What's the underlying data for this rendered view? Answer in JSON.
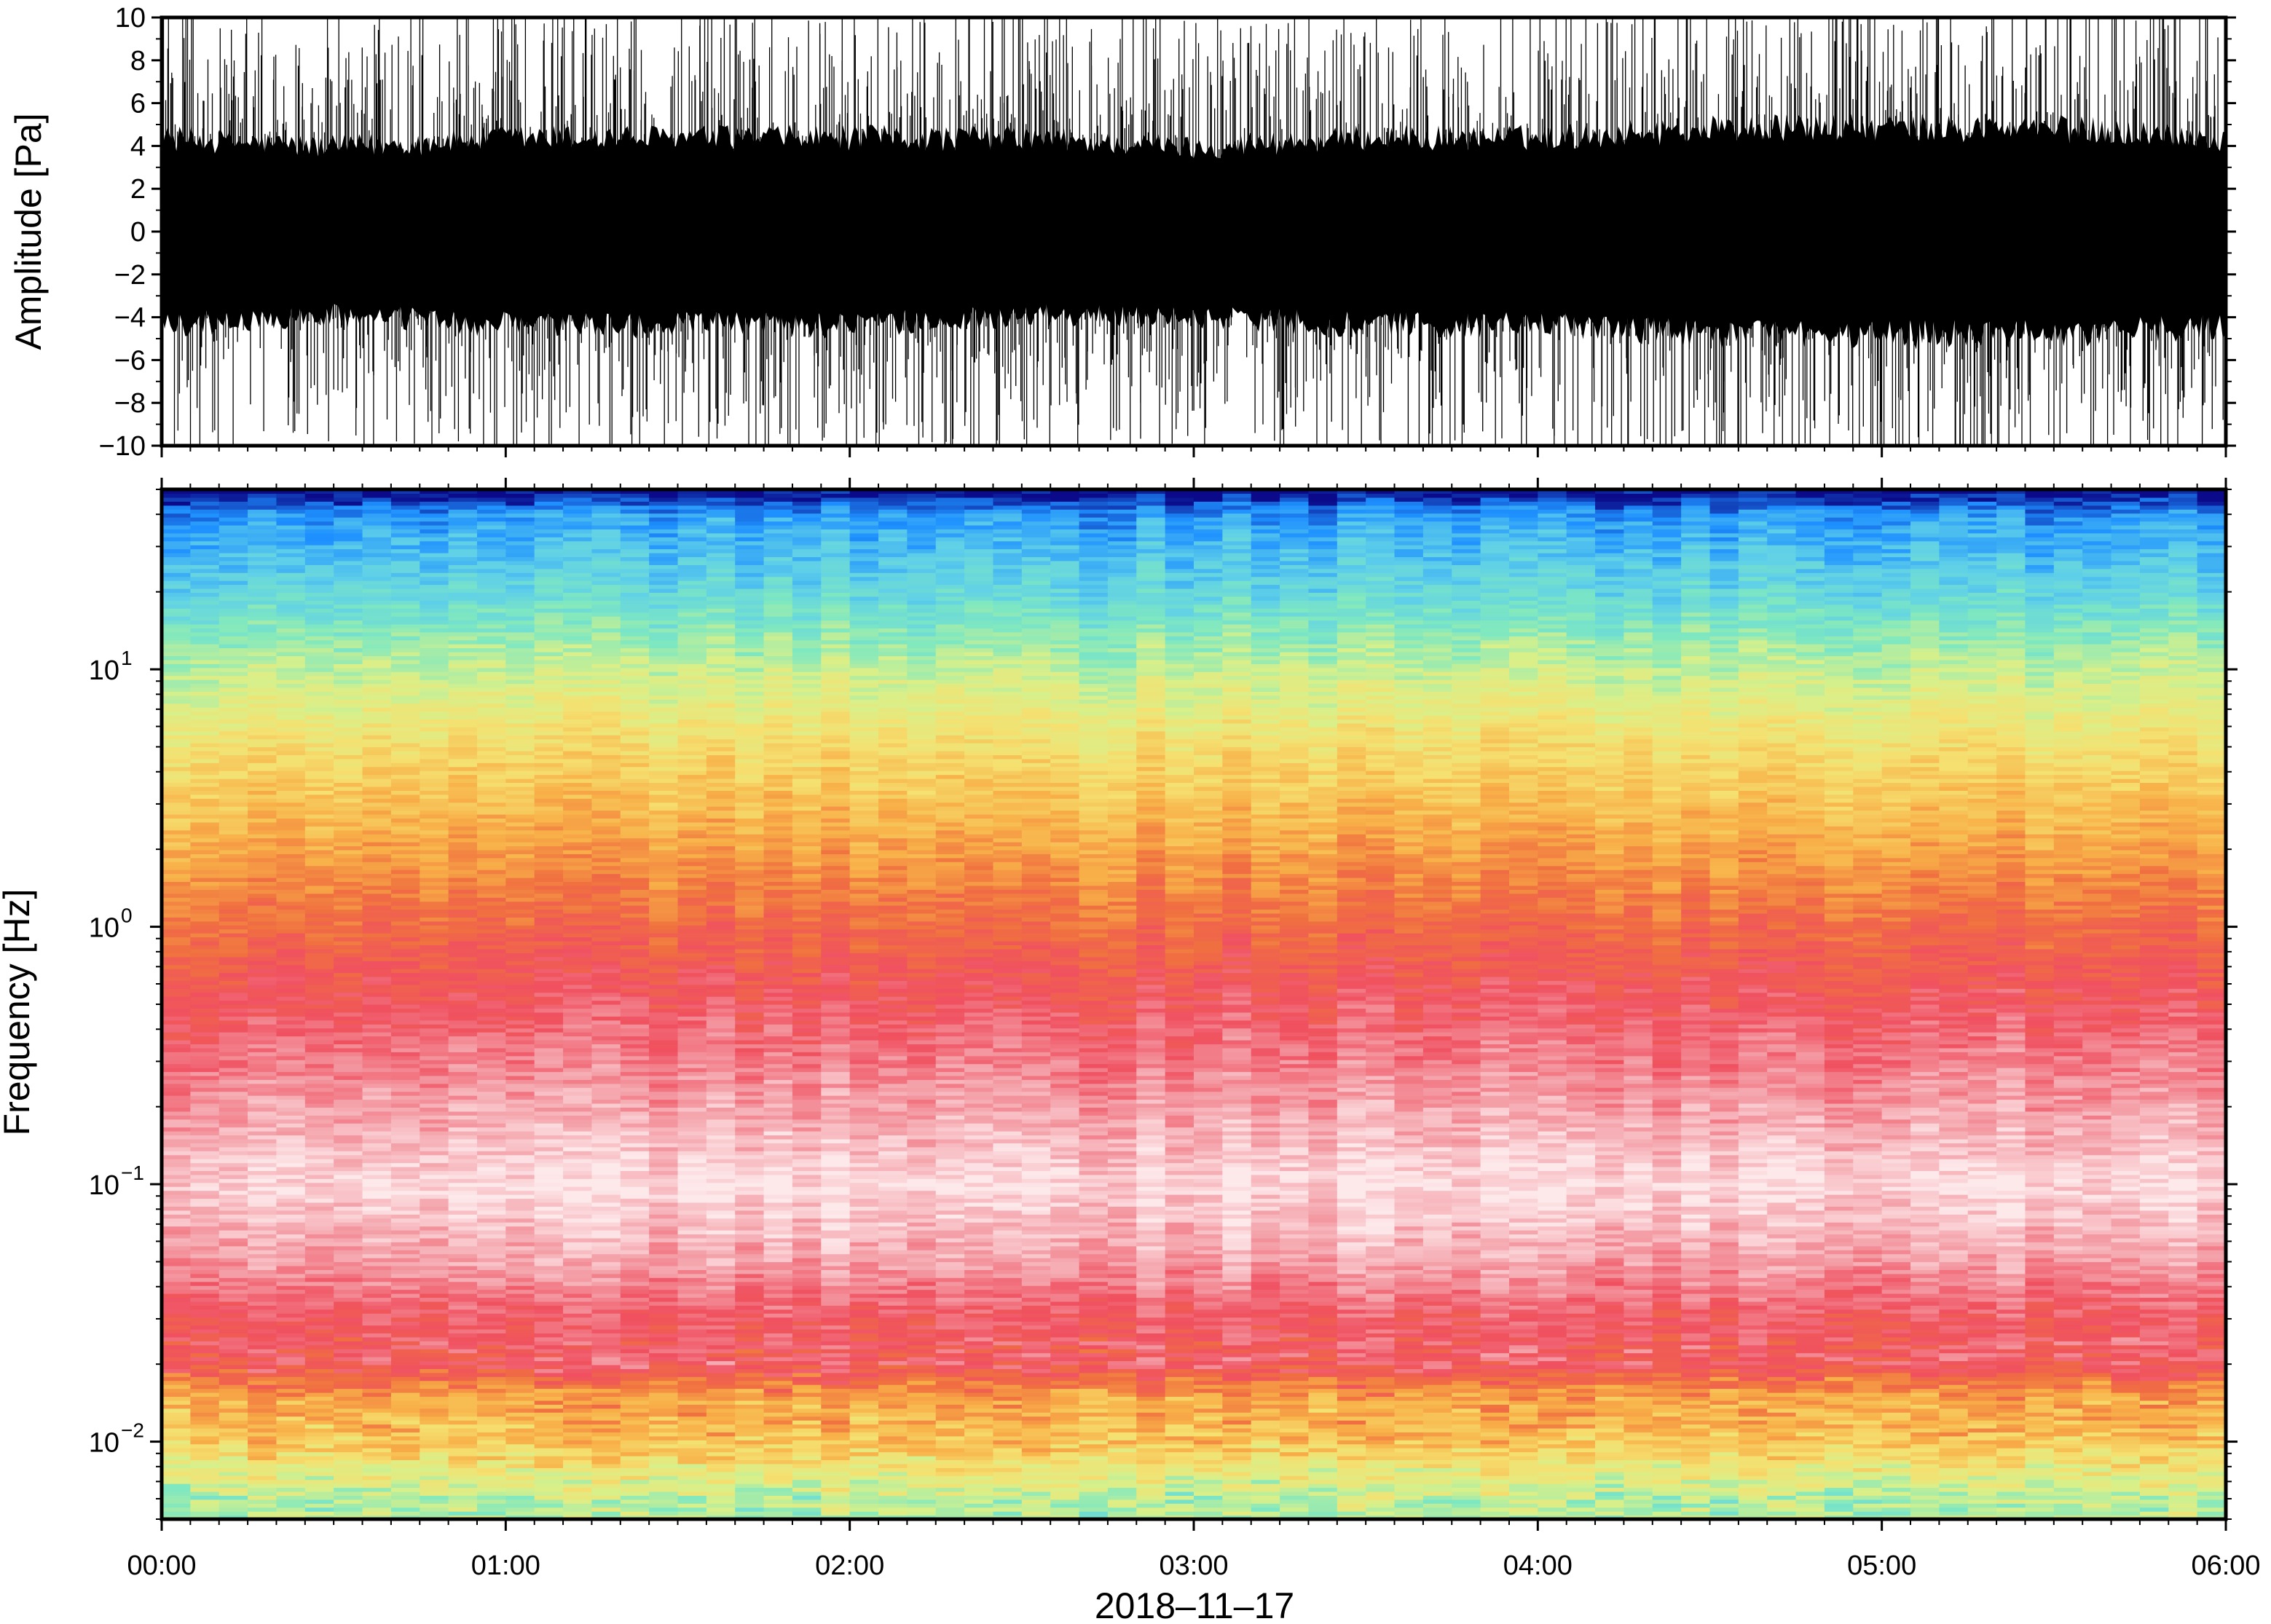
{
  "chart_data": [
    {
      "type": "line",
      "title": "",
      "xlabel": "",
      "ylabel": "Amplitude [Pa]",
      "ylim": [
        -10,
        10
      ],
      "yticks": [
        -10,
        -8,
        -6,
        -4,
        -2,
        0,
        2,
        4,
        6,
        8,
        10
      ],
      "ytick_labels": [
        "−10",
        "−8",
        "−6",
        "−4",
        "−2",
        "0",
        "2",
        "4",
        "6",
        "8",
        "10"
      ],
      "x_range": [
        "00:00",
        "06:00"
      ],
      "series": [
        {
          "values_description_none": null,
          "envelope_points": {
            "x": [
              "00:00",
              "00:30",
              "01:00",
              "01:30",
              "02:00",
              "02:30",
              "03:00",
              "03:30",
              "04:00",
              "04:30",
              "05:00",
              "05:30",
              "06:00"
            ],
            "typical_max": [
              5,
              4.5,
              5,
              5,
              5,
              5,
              4.5,
              5,
              5,
              5.5,
              5.5,
              5.5,
              5
            ],
            "typical_min": [
              -5,
              -4.5,
              -5,
              -5,
              -5,
              -4.5,
              -4.5,
              -5,
              -5,
              -5.5,
              -5.5,
              -5.5,
              -5
            ],
            "peak_max": [
              10,
              10,
              10,
              10,
              10,
              10,
              10,
              10,
              10,
              10,
              10,
              10,
              10
            ],
            "peak_min": [
              -10,
              -10,
              -10,
              -10,
              -10,
              -10,
              -10,
              -10,
              -10,
              -10,
              -10,
              -10,
              -10
            ]
          }
        }
      ],
      "color": "#000000"
    },
    {
      "type": "heatmap",
      "title": "",
      "xlabel": "2018–11–17",
      "ylabel": "Frequency [Hz]",
      "yscale": "log",
      "ylim": [
        0.005,
        50
      ],
      "yticks": [
        0.01,
        0.1,
        1,
        10
      ],
      "ytick_labels": [
        {
          "base": "10",
          "exp": "−2"
        },
        {
          "base": "10",
          "exp": "−1"
        },
        {
          "base": "10",
          "exp": "0"
        },
        {
          "base": "10",
          "exp": "1"
        }
      ],
      "xticks": [
        "00:00",
        "01:00",
        "02:00",
        "03:00",
        "04:00",
        "05:00",
        "06:00"
      ],
      "x_range": [
        "00:00",
        "06:00"
      ],
      "colormap": [
        "#0a0a8a",
        "#1e90ff",
        "#5fd0e8",
        "#7fe8c0",
        "#d8f08a",
        "#f5e070",
        "#f8b048",
        "#f07040",
        "#f05060",
        "#f4a0a8",
        "#fde8ea"
      ],
      "frequency_profile": {
        "freq_hz": [
          0.006,
          0.01,
          0.015,
          0.02,
          0.03,
          0.05,
          0.1,
          0.2,
          0.5,
          1,
          2,
          5,
          10,
          20,
          40,
          48
        ],
        "level": [
          "light green",
          "yellow-orange",
          "orange",
          "red",
          "red",
          "pink",
          "light pink",
          "pink",
          "red",
          "red-orange",
          "orange",
          "yellow",
          "yellow-green",
          "cyan",
          "blue",
          "dark blue"
        ]
      }
    }
  ]
}
